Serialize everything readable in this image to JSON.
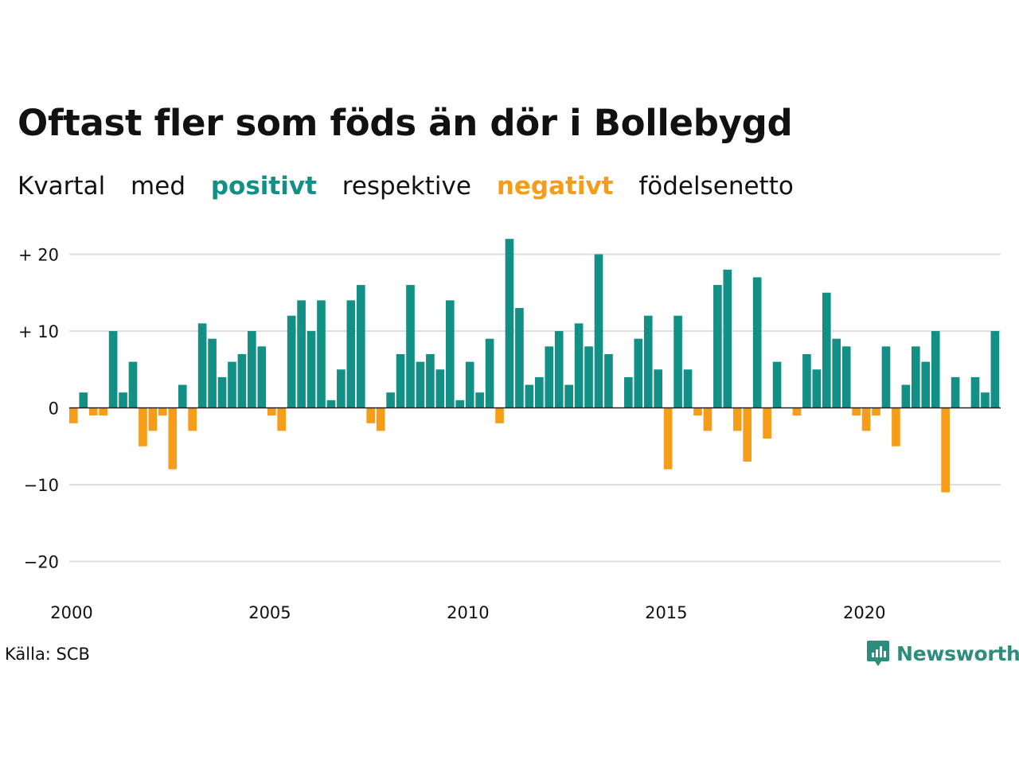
{
  "title": "Oftast fler som föds än dör i Bollebygd",
  "subtitle": {
    "w1": "Kvartal",
    "w2": "med",
    "positive": "positivt",
    "w3": "respektive",
    "negative": "negativt",
    "w4": "födelsenetto"
  },
  "source": "Källa: SCB",
  "brand": "Newsworthy",
  "colors": {
    "positive": "#139085",
    "negative": "#f59d19",
    "grid": "#dddddd",
    "text": "#111111"
  },
  "chart_data": {
    "type": "bar",
    "start_year": 2000,
    "quarters_per_year": 4,
    "values": [
      -2,
      2,
      -1,
      -1,
      10,
      2,
      6,
      -5,
      -3,
      -1,
      -8,
      3,
      -3,
      11,
      9,
      4,
      6,
      7,
      10,
      8,
      -1,
      -3,
      12,
      14,
      10,
      14,
      1,
      5,
      14,
      16,
      -2,
      -3,
      2,
      7,
      16,
      6,
      7,
      5,
      14,
      1,
      6,
      2,
      9,
      -2,
      22,
      13,
      3,
      4,
      8,
      10,
      3,
      11,
      8,
      20,
      7,
      0,
      4,
      9,
      12,
      5,
      -8,
      12,
      5,
      -1,
      -3,
      16,
      18,
      -3,
      -7,
      17,
      -4,
      6,
      0,
      -1,
      7,
      5,
      15,
      9,
      8,
      -1,
      -3,
      -1,
      8,
      -5,
      3,
      8,
      6,
      10,
      -11,
      4,
      0,
      4,
      2,
      10
    ],
    "ylim": [
      -20,
      22
    ],
    "yticks": [
      {
        "value": 20,
        "label": "+ 20"
      },
      {
        "value": 10,
        "label": "+ 10"
      },
      {
        "value": 0,
        "label": "0"
      },
      {
        "value": -10,
        "label": "−10"
      },
      {
        "value": -20,
        "label": "−20"
      }
    ],
    "xticks": [
      {
        "value": 2000,
        "label": "2000"
      },
      {
        "value": 2005,
        "label": "2005"
      },
      {
        "value": 2010,
        "label": "2010"
      },
      {
        "value": 2015,
        "label": "2015"
      },
      {
        "value": 2020,
        "label": "2020"
      }
    ],
    "grid": true,
    "legend": "none"
  }
}
